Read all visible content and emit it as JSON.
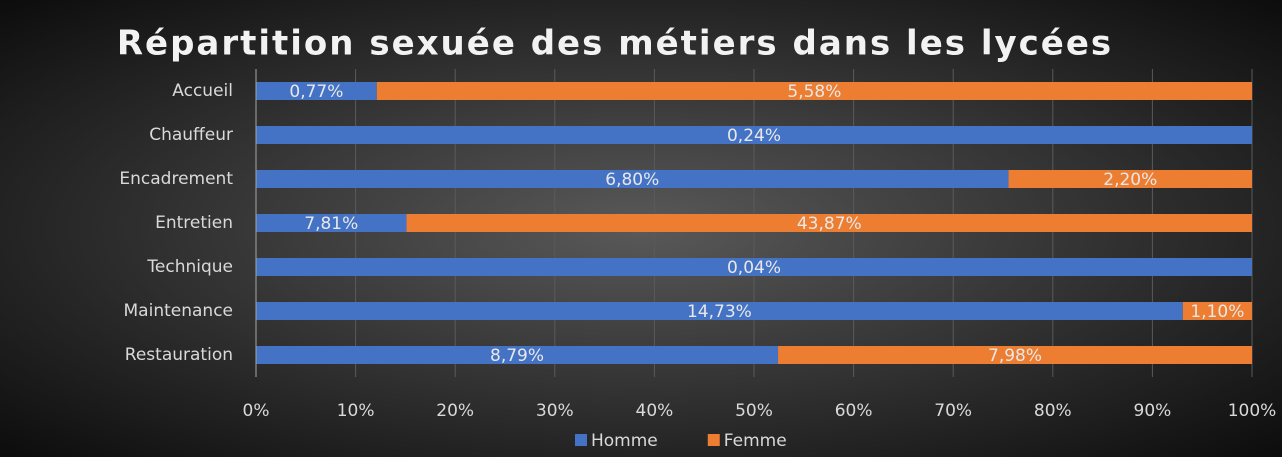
{
  "chart_data": {
    "type": "bar",
    "orientation": "horizontal",
    "stack": "percent",
    "title": "Répartition sexuée des métiers dans les lycées",
    "categories": [
      "Accueil",
      "Chauffeur",
      "Encadrement",
      "Entretien",
      "Technique",
      "Maintenance",
      "Restauration"
    ],
    "series": [
      {
        "name": "Homme",
        "color": "#4472c4",
        "values": [
          0.77,
          0.24,
          6.8,
          7.81,
          0.04,
          14.73,
          8.79
        ],
        "value_labels": [
          "0,77%",
          "0,24%",
          "6,80%",
          "7,81%",
          "0,04%",
          "14,73%",
          "8,79%"
        ]
      },
      {
        "name": "Femme",
        "color": "#ed7d31",
        "values": [
          5.58,
          0,
          2.2,
          43.87,
          0,
          1.1,
          7.98
        ],
        "value_labels": [
          "5,58%",
          null,
          "2,20%",
          "43,87%",
          null,
          "1,10%",
          "7,98%"
        ]
      }
    ],
    "xlim": [
      0,
      100
    ],
    "xticks": [
      {
        "value": 0,
        "label": "0%"
      },
      {
        "value": 10,
        "label": "10%"
      },
      {
        "value": 20,
        "label": "20%"
      },
      {
        "value": 30,
        "label": "30%"
      },
      {
        "value": 40,
        "label": "40%"
      },
      {
        "value": 50,
        "label": "50%"
      },
      {
        "value": 60,
        "label": "60%"
      },
      {
        "value": 70,
        "label": "70%"
      },
      {
        "value": 80,
        "label": "80%"
      },
      {
        "value": 90,
        "label": "90%"
      },
      {
        "value": 100,
        "label": "100%"
      }
    ],
    "grid": true,
    "legend": "bottom"
  }
}
